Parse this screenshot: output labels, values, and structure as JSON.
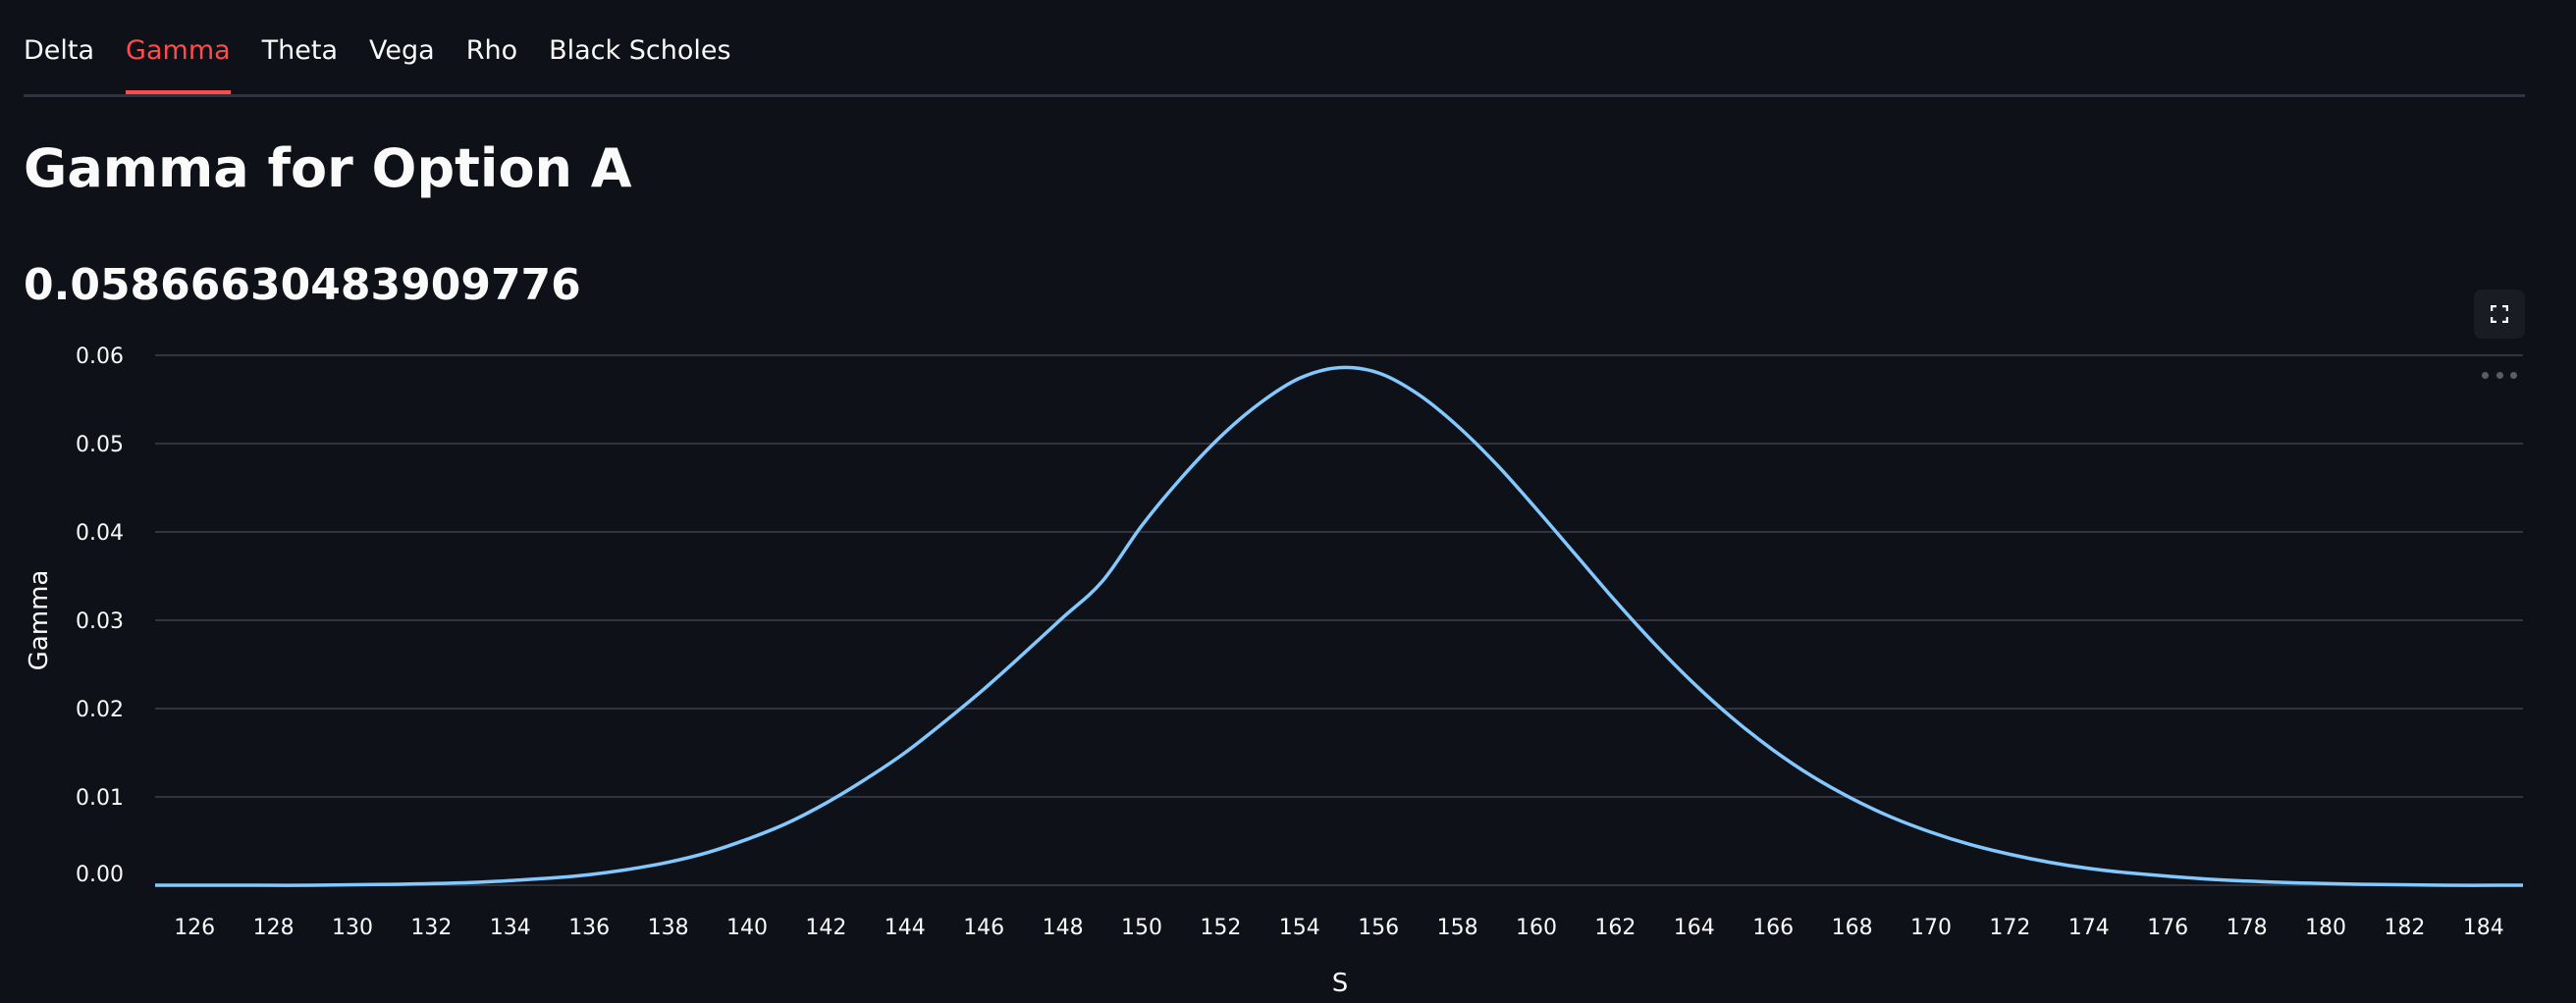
{
  "tabs": [
    {
      "label": "Delta",
      "active": false
    },
    {
      "label": "Gamma",
      "active": true
    },
    {
      "label": "Theta",
      "active": false
    },
    {
      "label": "Vega",
      "active": false
    },
    {
      "label": "Rho",
      "active": false
    },
    {
      "label": "Black Scholes",
      "active": false
    }
  ],
  "page": {
    "title": "Gamma for Option A",
    "metric_value": "0.05866630483909776"
  },
  "toolbar": {
    "fullscreen_icon": "fullscreen-icon",
    "more_icon": "more-options-icon"
  },
  "colors": {
    "background": "#0e1117",
    "accent": "#ff4b4b",
    "line": "#83c9ff",
    "grid": "#31333f"
  },
  "chart_data": {
    "type": "line",
    "xlabel": "S",
    "ylabel": "Gamma",
    "xlim": [
      125,
      185
    ],
    "ylim": [
      0,
      0.06
    ],
    "x_ticks": [
      126,
      128,
      130,
      132,
      134,
      136,
      138,
      140,
      142,
      144,
      146,
      148,
      150,
      152,
      154,
      156,
      158,
      160,
      162,
      164,
      166,
      168,
      170,
      172,
      174,
      176,
      178,
      180,
      182,
      184
    ],
    "y_ticks": [
      "0.00",
      "0.01",
      "0.02",
      "0.03",
      "0.04",
      "0.05",
      "0.06"
    ],
    "grid": true,
    "series": [
      {
        "x": [
          125,
          127,
          129,
          131,
          133,
          135,
          136,
          137,
          138,
          139,
          140,
          141,
          142,
          143,
          144,
          145,
          146,
          147,
          148,
          149,
          150,
          151,
          152,
          153,
          154,
          155,
          156,
          157,
          158,
          159,
          160,
          161,
          162,
          163,
          164,
          165,
          166,
          167,
          168,
          169,
          170,
          171,
          172,
          173,
          174,
          175,
          177,
          179,
          181,
          183,
          185
        ],
        "y": [
          0.0,
          0.0,
          0.0,
          0.0001,
          0.0003,
          0.0008,
          0.0012,
          0.0018,
          0.0026,
          0.0037,
          0.0052,
          0.007,
          0.0093,
          0.012,
          0.015,
          0.0185,
          0.0222,
          0.0262,
          0.0303,
          0.0344,
          0.0407,
          0.0461,
          0.0508,
          0.0546,
          0.0574,
          0.0586,
          0.058,
          0.0556,
          0.052,
          0.0476,
          0.0426,
          0.0374,
          0.0322,
          0.0273,
          0.0228,
          0.0188,
          0.0153,
          0.0123,
          0.0098,
          0.0077,
          0.006,
          0.0046,
          0.0035,
          0.0026,
          0.0019,
          0.0014,
          0.0007,
          0.0003,
          0.0001,
          0.0,
          0.0
        ]
      }
    ]
  }
}
